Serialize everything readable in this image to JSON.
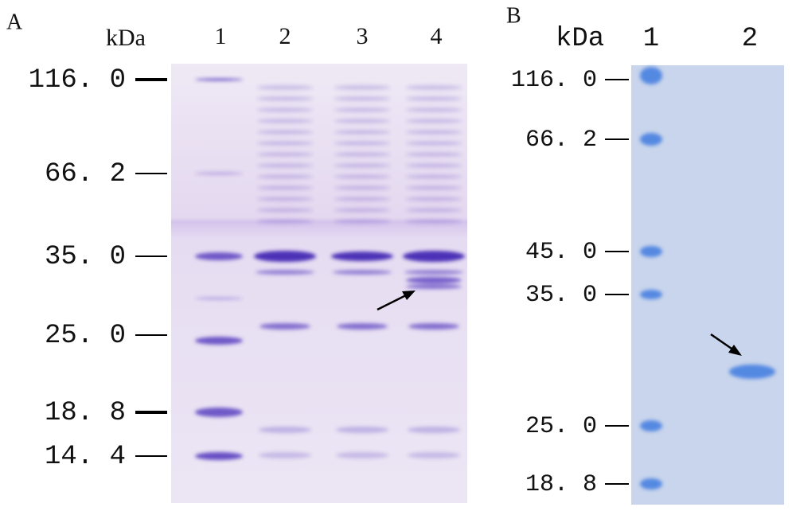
{
  "panels": [
    {
      "label": "A",
      "unit": "kDa",
      "lanes": [
        "1",
        "2",
        "3",
        "4"
      ],
      "markers": [
        "116. 0",
        "66. 2",
        "35. 0",
        "25. 0",
        "18. 8",
        "14. 4"
      ]
    },
    {
      "label": "B",
      "unit": "kDa",
      "lanes": [
        "1",
        "2"
      ],
      "markers": [
        "116. 0",
        "66. 2",
        "45. 0",
        "35. 0",
        "25. 0",
        "18. 8"
      ]
    }
  ]
}
